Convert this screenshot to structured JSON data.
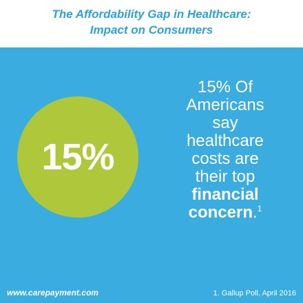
{
  "header": {
    "title_line1": "The Affordability Gap in Healthcare:",
    "title_line2": "Impact on Consumers"
  },
  "stat": {
    "value": "15%"
  },
  "statement": {
    "line1": "15% Of",
    "line2": "Americans",
    "line3": "say",
    "line4": "healthcare",
    "line5": "costs are",
    "line6": "their top",
    "line7": "financial",
    "line8_bold": "concern",
    "line8_end": ".",
    "footnote_marker": "1"
  },
  "footer": {
    "url": "www.carepayment.com",
    "source": "1. Gallup Poll, April 2016"
  },
  "colors": {
    "background": "#3AACE0",
    "header_bg": "#FFFFFF",
    "title": "#2BA3D9",
    "circle": "#AFC83B",
    "text": "#FFFFFF"
  }
}
